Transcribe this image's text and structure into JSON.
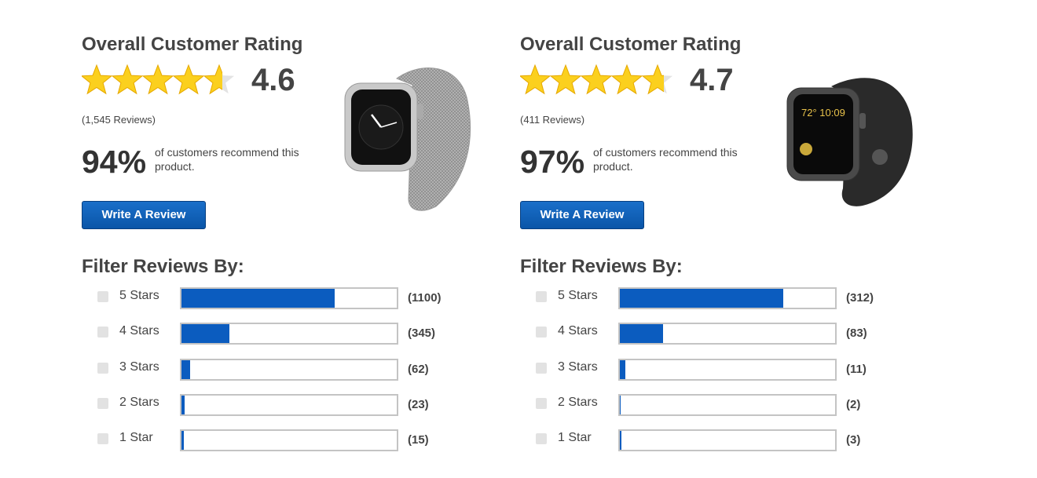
{
  "panels": [
    {
      "title": "Overall Customer Rating",
      "rating": 4.6,
      "review_count": 1545,
      "review_count_label": "(1,545 Reviews)",
      "recommend_percent": "94%",
      "recommend_text": "of customers recommend this product.",
      "button": "Write A Review",
      "filter_title": "Filter Reviews By:",
      "rows": [
        {
          "label": "5 Stars",
          "count": 1100,
          "count_label": "(1100)"
        },
        {
          "label": "4 Stars",
          "count": 345,
          "count_label": "(345)"
        },
        {
          "label": "3 Stars",
          "count": 62,
          "count_label": "(62)"
        },
        {
          "label": "2 Stars",
          "count": 23,
          "count_label": "(23)"
        },
        {
          "label": "1 Star",
          "count": 15,
          "count_label": "(15)"
        }
      ]
    },
    {
      "title": "Overall Customer Rating",
      "rating": 4.7,
      "review_count": 411,
      "review_count_label": "(411 Reviews)",
      "recommend_percent": "97%",
      "recommend_text": "of customers recommend this product.",
      "button": "Write A Review",
      "filter_title": "Filter Reviews By:",
      "rows": [
        {
          "label": "5 Stars",
          "count": 312,
          "count_label": "(312)"
        },
        {
          "label": "4 Stars",
          "count": 83,
          "count_label": "(83)"
        },
        {
          "label": "3 Stars",
          "count": 11,
          "count_label": "(11)"
        },
        {
          "label": "2 Stars",
          "count": 2,
          "count_label": "(2)"
        },
        {
          "label": "1 Star",
          "count": 3,
          "count_label": "(3)"
        }
      ]
    }
  ]
}
